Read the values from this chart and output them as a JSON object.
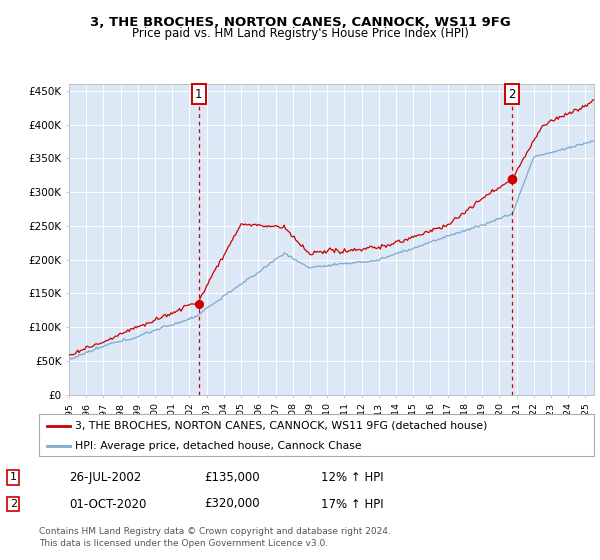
{
  "title": "3, THE BROCHES, NORTON CANES, CANNOCK, WS11 9FG",
  "subtitle": "Price paid vs. HM Land Registry's House Price Index (HPI)",
  "plot_bg_color": "#dce8f5",
  "ylim": [
    0,
    460000
  ],
  "ytick_vals": [
    0,
    50000,
    100000,
    150000,
    200000,
    250000,
    300000,
    350000,
    400000,
    450000
  ],
  "ytick_labels": [
    "£0",
    "£50K",
    "£100K",
    "£150K",
    "£200K",
    "£250K",
    "£300K",
    "£350K",
    "£400K",
    "£450K"
  ],
  "xlim_start": 1995,
  "xlim_end": 2025.5,
  "xtick_years": [
    1995,
    1996,
    1997,
    1998,
    1999,
    2000,
    2001,
    2002,
    2003,
    2004,
    2005,
    2006,
    2007,
    2008,
    2009,
    2010,
    2011,
    2012,
    2013,
    2014,
    2015,
    2016,
    2017,
    2018,
    2019,
    2020,
    2021,
    2022,
    2023,
    2024,
    2025
  ],
  "legend_line1": "3, THE BROCHES, NORTON CANES, CANNOCK, WS11 9FG (detached house)",
  "legend_line2": "HPI: Average price, detached house, Cannock Chase",
  "marker1_x_year": 2002.54,
  "marker1_y": 135000,
  "marker2_x_year": 2020.75,
  "marker2_y": 320000,
  "footer": "Contains HM Land Registry data © Crown copyright and database right 2024.\nThis data is licensed under the Open Government Licence v3.0.",
  "red_color": "#cc0000",
  "blue_color": "#7aaad0",
  "table_rows": [
    [
      "1",
      "26-JUL-2002",
      "£135,000",
      "12% ↑ HPI"
    ],
    [
      "2",
      "01-OCT-2020",
      "£320,000",
      "17% ↑ HPI"
    ]
  ]
}
